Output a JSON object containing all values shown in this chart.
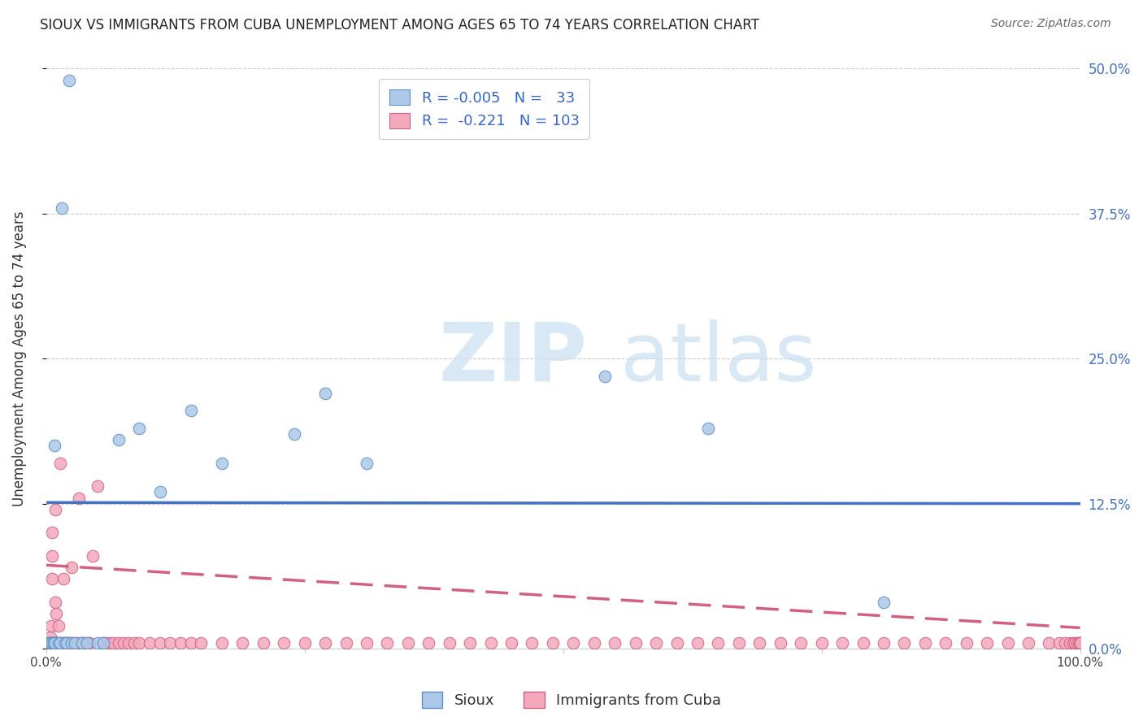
{
  "title": "SIOUX VS IMMIGRANTS FROM CUBA UNEMPLOYMENT AMONG AGES 65 TO 74 YEARS CORRELATION CHART",
  "source": "Source: ZipAtlas.com",
  "ylabel": "Unemployment Among Ages 65 to 74 years",
  "xlim": [
    0.0,
    1.0
  ],
  "ylim": [
    0.0,
    0.5
  ],
  "yticks": [
    0.0,
    0.125,
    0.25,
    0.375,
    0.5
  ],
  "ytick_labels": [
    "0.0%",
    "12.5%",
    "25.0%",
    "37.5%",
    "50.0%"
  ],
  "xticks": [
    0.0,
    0.25,
    0.5,
    0.75,
    1.0
  ],
  "xtick_labels": [
    "0.0%",
    "",
    "",
    "",
    "100.0%"
  ],
  "legend_r_sioux": "-0.005",
  "legend_n_sioux": "33",
  "legend_r_cuba": "-0.221",
  "legend_n_cuba": "103",
  "sioux_color": "#adc8e8",
  "cuba_color": "#f4a8bc",
  "sioux_edge_color": "#5a8fc8",
  "cuba_edge_color": "#d06080",
  "sioux_line_color": "#4472c4",
  "cuba_line_color": "#d46080",
  "sioux_trend_y0": 0.126,
  "sioux_trend_y1": 0.125,
  "cuba_trend_y0": 0.072,
  "cuba_trend_y1": 0.018,
  "background_color": "#ffffff",
  "grid_color": "#cccccc",
  "title_color": "#222222",
  "right_tick_color": "#4472c4",
  "sioux_x": [
    0.015,
    0.022,
    0.008,
    0.005,
    0.003,
    0.003,
    0.004,
    0.005,
    0.004,
    0.006,
    0.007,
    0.008,
    0.012,
    0.014,
    0.018,
    0.02,
    0.025,
    0.028,
    0.035,
    0.04,
    0.05,
    0.055,
    0.07,
    0.09,
    0.11,
    0.14,
    0.17,
    0.24,
    0.27,
    0.31,
    0.54,
    0.64,
    0.81
  ],
  "sioux_y": [
    0.38,
    0.49,
    0.175,
    0.005,
    0.005,
    0.005,
    0.005,
    0.005,
    0.005,
    0.005,
    0.005,
    0.005,
    0.005,
    0.005,
    0.005,
    0.005,
    0.005,
    0.005,
    0.005,
    0.005,
    0.005,
    0.005,
    0.18,
    0.19,
    0.135,
    0.205,
    0.16,
    0.185,
    0.22,
    0.16,
    0.235,
    0.19,
    0.04
  ],
  "cuba_x": [
    0.003,
    0.004,
    0.004,
    0.005,
    0.005,
    0.006,
    0.006,
    0.006,
    0.007,
    0.008,
    0.009,
    0.009,
    0.01,
    0.01,
    0.011,
    0.012,
    0.013,
    0.014,
    0.015,
    0.016,
    0.017,
    0.018,
    0.019,
    0.02,
    0.022,
    0.024,
    0.025,
    0.027,
    0.03,
    0.032,
    0.034,
    0.036,
    0.04,
    0.042,
    0.045,
    0.05,
    0.055,
    0.058,
    0.062,
    0.065,
    0.07,
    0.075,
    0.08,
    0.085,
    0.09,
    0.1,
    0.11,
    0.12,
    0.13,
    0.14,
    0.15,
    0.17,
    0.19,
    0.21,
    0.23,
    0.25,
    0.27,
    0.29,
    0.31,
    0.33,
    0.35,
    0.37,
    0.39,
    0.41,
    0.43,
    0.45,
    0.47,
    0.49,
    0.51,
    0.53,
    0.55,
    0.57,
    0.59,
    0.61,
    0.63,
    0.65,
    0.67,
    0.69,
    0.71,
    0.73,
    0.75,
    0.77,
    0.79,
    0.81,
    0.83,
    0.85,
    0.87,
    0.89,
    0.91,
    0.93,
    0.95,
    0.97,
    0.98,
    0.985,
    0.99,
    0.993,
    0.995,
    0.997,
    0.999,
    1.0,
    1.0,
    1.0,
    1.0
  ],
  "cuba_y": [
    0.005,
    0.005,
    0.01,
    0.005,
    0.02,
    0.06,
    0.08,
    0.1,
    0.005,
    0.005,
    0.04,
    0.12,
    0.005,
    0.03,
    0.005,
    0.02,
    0.005,
    0.16,
    0.005,
    0.005,
    0.06,
    0.005,
    0.005,
    0.005,
    0.005,
    0.005,
    0.07,
    0.005,
    0.005,
    0.13,
    0.005,
    0.005,
    0.005,
    0.005,
    0.08,
    0.14,
    0.005,
    0.005,
    0.005,
    0.005,
    0.005,
    0.005,
    0.005,
    0.005,
    0.005,
    0.005,
    0.005,
    0.005,
    0.005,
    0.005,
    0.005,
    0.005,
    0.005,
    0.005,
    0.005,
    0.005,
    0.005,
    0.005,
    0.005,
    0.005,
    0.005,
    0.005,
    0.005,
    0.005,
    0.005,
    0.005,
    0.005,
    0.005,
    0.005,
    0.005,
    0.005,
    0.005,
    0.005,
    0.005,
    0.005,
    0.005,
    0.005,
    0.005,
    0.005,
    0.005,
    0.005,
    0.005,
    0.005,
    0.005,
    0.005,
    0.005,
    0.005,
    0.005,
    0.005,
    0.005,
    0.005,
    0.005,
    0.005,
    0.005,
    0.005,
    0.005,
    0.005,
    0.005,
    0.005,
    0.005,
    0.005,
    0.005,
    0.005
  ]
}
